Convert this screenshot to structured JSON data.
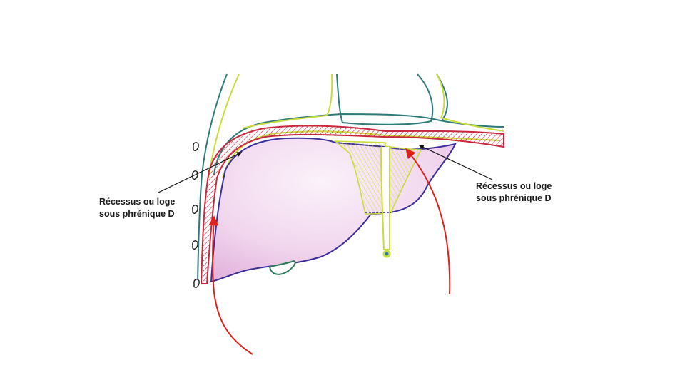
{
  "labels": {
    "left": {
      "line1": "Récessus ou loge",
      "line2": "sous phrénique D"
    },
    "right": {
      "line1": "Récessus ou loge",
      "line2": "sous phrénique D"
    }
  },
  "colors": {
    "diaphragm_red": "#c8283c",
    "peritoneum_yellow": "#c9dc3a",
    "teal_outline": "#2e7a78",
    "liver_outline": "#3a2f9a",
    "liver_fill": "#f0d4ec",
    "arrow_red": "#e0201a",
    "pointer_black": "#111111"
  }
}
